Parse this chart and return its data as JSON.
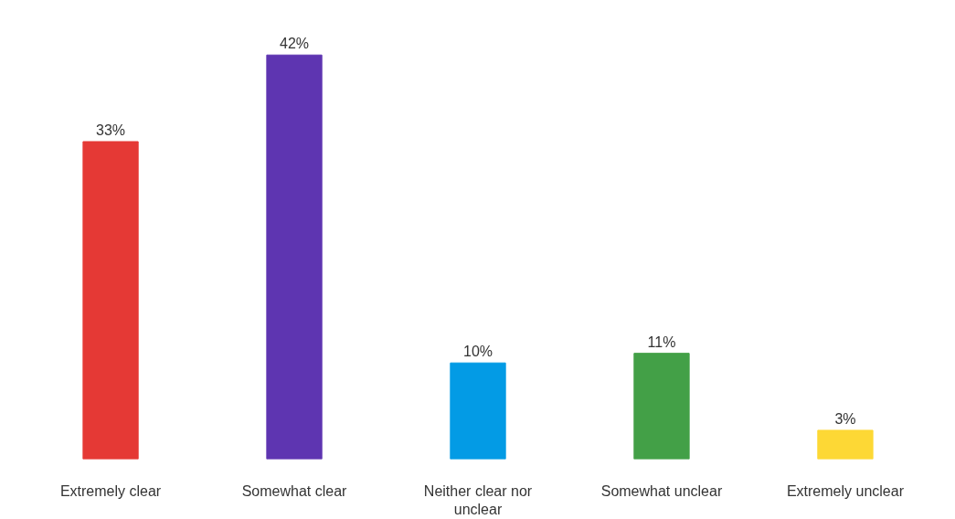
{
  "chart_data": {
    "type": "bar",
    "categories": [
      "Extremely clear",
      "Somewhat clear",
      "Neither clear nor unclear",
      "Somewhat unclear",
      "Extremely unclear"
    ],
    "values": [
      33,
      42,
      10,
      11,
      3
    ],
    "colors": [
      "#e53935",
      "#5e35b1",
      "#039be5",
      "#43a047",
      "#fdd835"
    ],
    "value_labels": [
      "33%",
      "42%",
      "10%",
      "11%",
      "3%"
    ],
    "grid": false
  }
}
